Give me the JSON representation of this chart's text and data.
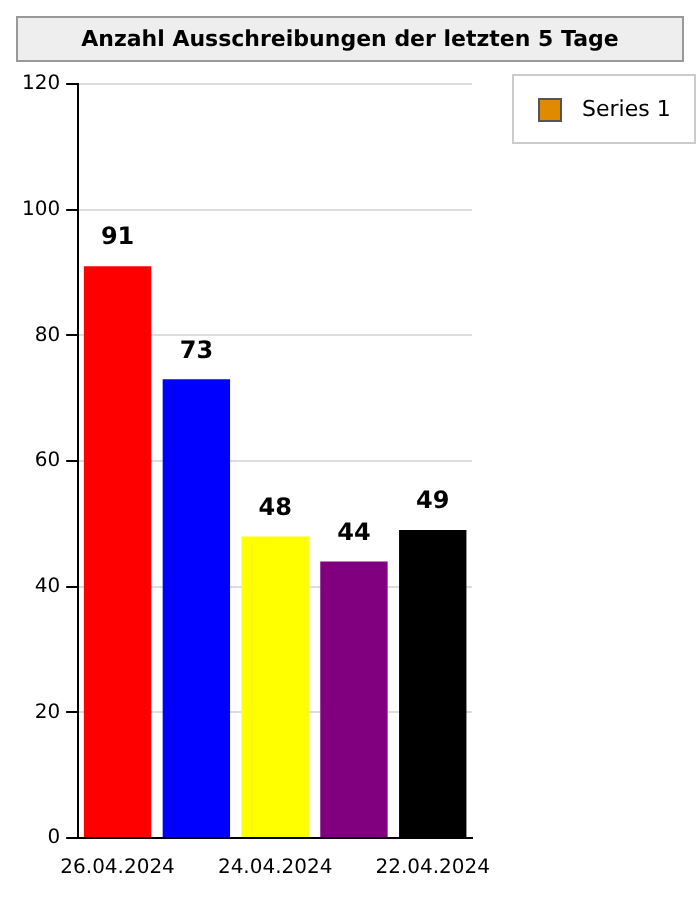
{
  "chart_data": {
    "type": "bar",
    "title": "Anzahl Ausschreibungen der letzten 5 Tage",
    "categories": [
      "26.04.2024",
      null,
      "24.04.2024",
      null,
      "22.04.2024"
    ],
    "series": [
      {
        "name": "Series 1",
        "color": "#e08a00",
        "colors": [
          "#ff0000",
          "#0000ff",
          "#ffff00",
          "#800080",
          "#000000"
        ],
        "values": [
          91,
          73,
          48,
          44,
          49
        ]
      }
    ],
    "ylim": [
      0,
      120
    ],
    "yticks": [
      0,
      20,
      40,
      60,
      80,
      100,
      120
    ],
    "grid": "y",
    "legend": "top right",
    "data_labels": true
  }
}
